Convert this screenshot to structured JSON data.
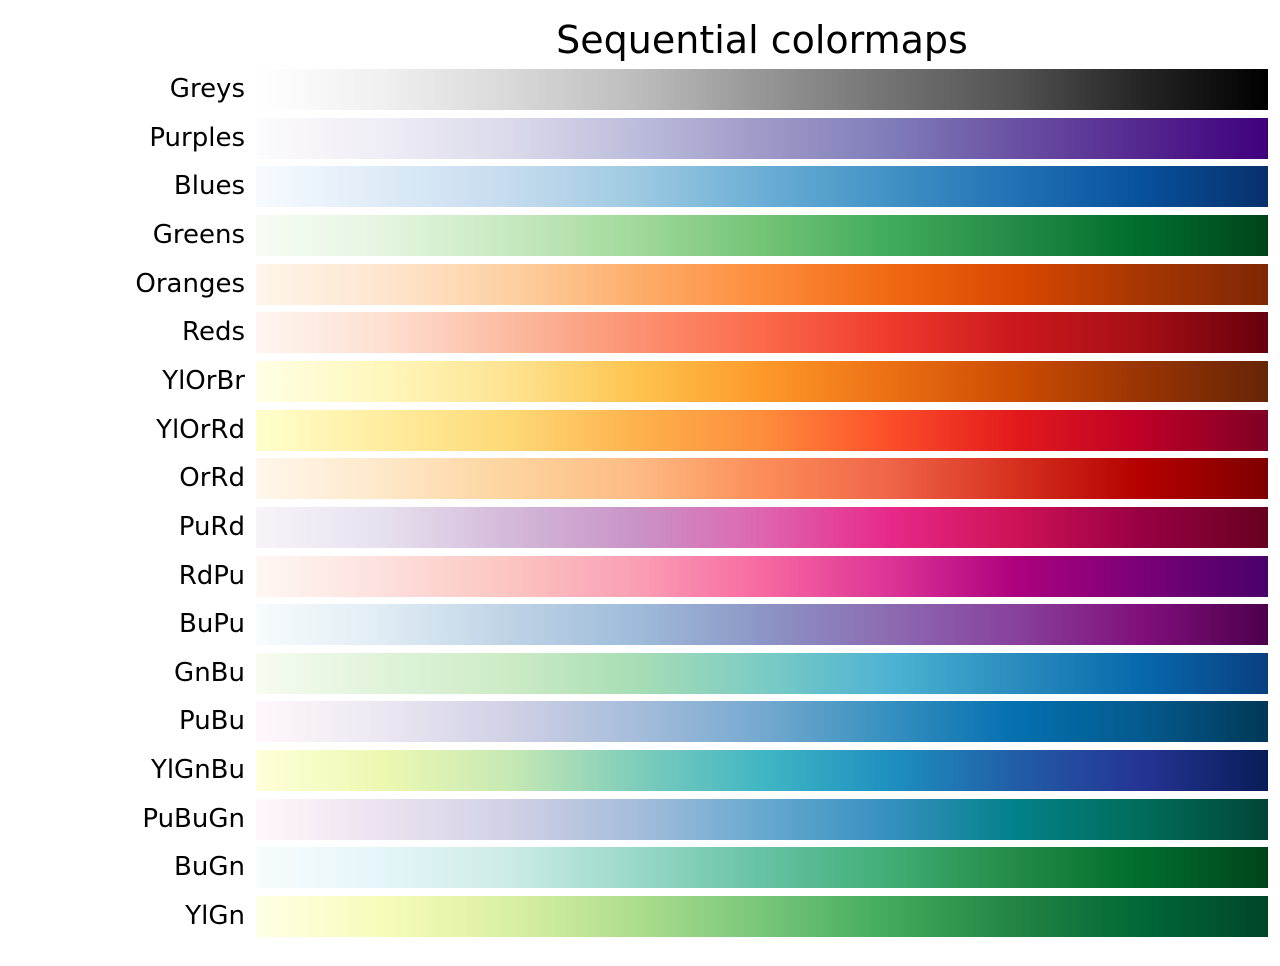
{
  "chart_data": {
    "type": "heatmap",
    "title": "Sequential colormaps",
    "xlim": [
      0,
      1
    ],
    "grid": false,
    "colormaps": [
      {
        "name": "Greys",
        "colors": [
          "#ffffff",
          "#f0f0f0",
          "#d9d9d9",
          "#bdbdbd",
          "#969696",
          "#737373",
          "#525252",
          "#252525",
          "#000000"
        ]
      },
      {
        "name": "Purples",
        "colors": [
          "#fcfbfd",
          "#efedf5",
          "#dadaeb",
          "#bcbddc",
          "#9e9ac8",
          "#807dba",
          "#6a51a3",
          "#54278f",
          "#3f007d"
        ]
      },
      {
        "name": "Blues",
        "colors": [
          "#f7fbff",
          "#deebf7",
          "#c6dbef",
          "#9ecae1",
          "#6baed6",
          "#4292c6",
          "#2171b5",
          "#08519c",
          "#08306b"
        ]
      },
      {
        "name": "Greens",
        "colors": [
          "#f7fcf5",
          "#e5f5e0",
          "#c7e9c0",
          "#a1d99b",
          "#74c476",
          "#41ab5d",
          "#238b45",
          "#006d2c",
          "#00441b"
        ]
      },
      {
        "name": "Oranges",
        "colors": [
          "#fff5eb",
          "#fee6ce",
          "#fdd0a2",
          "#fdae6b",
          "#fd8d3c",
          "#f16913",
          "#d94801",
          "#a63603",
          "#7f2704"
        ]
      },
      {
        "name": "Reds",
        "colors": [
          "#fff5f0",
          "#fee0d2",
          "#fcbba1",
          "#fc9272",
          "#fb6a4a",
          "#ef3b2c",
          "#cb181d",
          "#a50f15",
          "#67000d"
        ]
      },
      {
        "name": "YlOrBr",
        "colors": [
          "#ffffe5",
          "#fff7bc",
          "#fee391",
          "#fec44f",
          "#fe9929",
          "#ec7014",
          "#cc4c02",
          "#993404",
          "#662506"
        ]
      },
      {
        "name": "YlOrRd",
        "colors": [
          "#ffffcc",
          "#ffeda0",
          "#fed976",
          "#feb24c",
          "#fd8d3c",
          "#fc4e2a",
          "#e31a1c",
          "#bd0026",
          "#800026"
        ]
      },
      {
        "name": "OrRd",
        "colors": [
          "#fff7ec",
          "#fee8c8",
          "#fdd49e",
          "#fdbb84",
          "#fc8d59",
          "#ef6548",
          "#d7301f",
          "#b30000",
          "#7f0000"
        ]
      },
      {
        "name": "PuRd",
        "colors": [
          "#f7f4f9",
          "#e7e1ef",
          "#d4b9da",
          "#c994c7",
          "#df65b0",
          "#e7298a",
          "#ce1256",
          "#980043",
          "#67001f"
        ]
      },
      {
        "name": "RdPu",
        "colors": [
          "#fff7f3",
          "#fde0dd",
          "#fcc5c0",
          "#fa9fb5",
          "#f768a1",
          "#dd3497",
          "#ae017e",
          "#7a0177",
          "#49006a"
        ]
      },
      {
        "name": "BuPu",
        "colors": [
          "#f7fcfd",
          "#e0ecf4",
          "#bfd3e6",
          "#9ebcda",
          "#8c96c6",
          "#8c6bb1",
          "#88419d",
          "#810f7c",
          "#4d004b"
        ]
      },
      {
        "name": "GnBu",
        "colors": [
          "#f7fcf0",
          "#e0f3db",
          "#ccebc5",
          "#a8ddb5",
          "#7bccc4",
          "#4eb3d3",
          "#2b8cbe",
          "#0868ac",
          "#084081"
        ]
      },
      {
        "name": "PuBu",
        "colors": [
          "#fff7fb",
          "#ece7f2",
          "#d0d1e6",
          "#a6bddb",
          "#74a9cf",
          "#3690c0",
          "#0570b0",
          "#045a8d",
          "#023858"
        ]
      },
      {
        "name": "YlGnBu",
        "colors": [
          "#ffffd9",
          "#edf8b1",
          "#c7e9b4",
          "#7fcdbb",
          "#41b6c4",
          "#1d91c0",
          "#225ea8",
          "#253494",
          "#081d58"
        ]
      },
      {
        "name": "PuBuGn",
        "colors": [
          "#fff7fb",
          "#ece2f0",
          "#d0d1e6",
          "#a6bddb",
          "#67a9cf",
          "#3690c0",
          "#02818a",
          "#016c59",
          "#014636"
        ]
      },
      {
        "name": "BuGn",
        "colors": [
          "#f7fcfd",
          "#e5f5f9",
          "#ccece6",
          "#99d8c9",
          "#66c2a4",
          "#41ae76",
          "#238b45",
          "#006d2c",
          "#00441b"
        ]
      },
      {
        "name": "YlGn",
        "colors": [
          "#ffffe5",
          "#f7fcb9",
          "#d9f0a3",
          "#addd8e",
          "#78c679",
          "#41ab5d",
          "#238443",
          "#006837",
          "#004529"
        ]
      }
    ]
  }
}
